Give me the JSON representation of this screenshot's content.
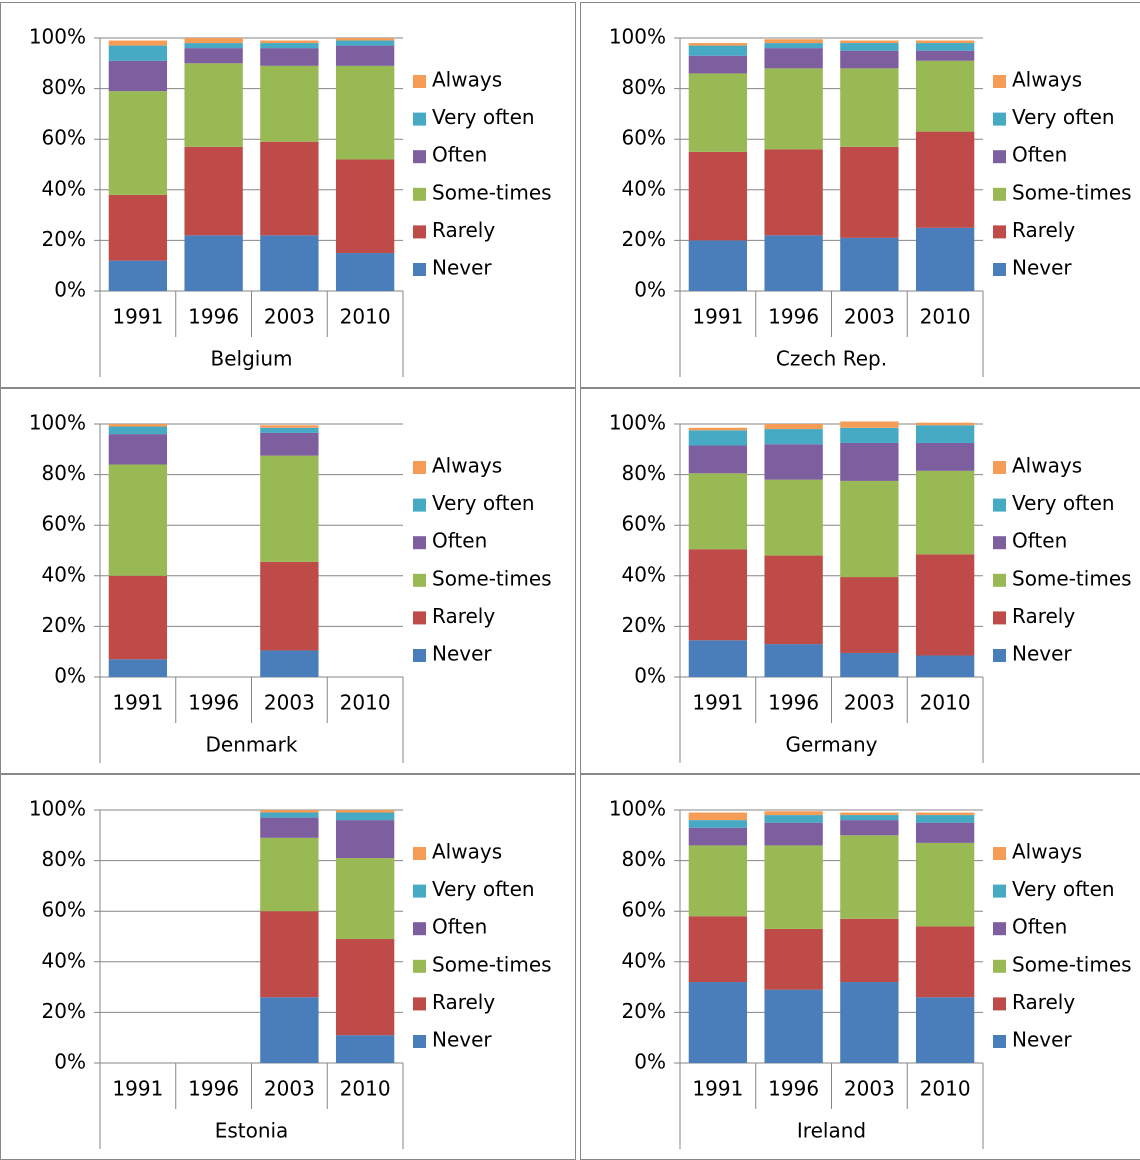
{
  "chart_data": [
    {
      "type": "bar",
      "stacked": true,
      "xlabel": "Belgium",
      "categories": [
        "1991",
        "1996",
        "2003",
        "2010"
      ],
      "ylim": [
        0,
        100
      ],
      "yticks": [
        {
          "value": 0,
          "label": "0%"
        },
        {
          "value": 20,
          "label": "20%"
        },
        {
          "value": 40,
          "label": "40%"
        },
        {
          "value": 60,
          "label": "60%"
        },
        {
          "value": 80,
          "label": "80%"
        },
        {
          "value": 100,
          "label": "100%"
        }
      ],
      "grid": true,
      "legend": "right",
      "series": [
        {
          "name": "Never",
          "color": "#4a7ebb",
          "values": [
            12,
            22,
            22,
            15
          ]
        },
        {
          "name": "Rarely",
          "color": "#be4b48",
          "values": [
            26,
            35,
            37,
            37
          ]
        },
        {
          "name": "Some-times",
          "color": "#98b954",
          "values": [
            41,
            33,
            30,
            37
          ]
        },
        {
          "name": "Often",
          "color": "#7d5fa0",
          "values": [
            12,
            6,
            7,
            8
          ]
        },
        {
          "name": "Very often",
          "color": "#46aac5",
          "values": [
            6,
            2,
            2,
            2
          ]
        },
        {
          "name": "Always",
          "color": "#f59d56",
          "values": [
            2,
            2,
            1,
            1
          ]
        }
      ]
    },
    {
      "type": "bar",
      "stacked": true,
      "xlabel": "Czech Rep.",
      "categories": [
        "1991",
        "1996",
        "2003",
        "2010"
      ],
      "ylim": [
        0,
        100
      ],
      "yticks": [
        {
          "value": 0,
          "label": "0%"
        },
        {
          "value": 20,
          "label": "20%"
        },
        {
          "value": 40,
          "label": "40%"
        },
        {
          "value": 60,
          "label": "60%"
        },
        {
          "value": 80,
          "label": "80%"
        },
        {
          "value": 100,
          "label": "100%"
        }
      ],
      "grid": true,
      "legend": "right",
      "series": [
        {
          "name": "Never",
          "color": "#4a7ebb",
          "values": [
            20,
            22,
            21,
            25
          ]
        },
        {
          "name": "Rarely",
          "color": "#be4b48",
          "values": [
            35,
            34,
            36,
            38
          ]
        },
        {
          "name": "Some-times",
          "color": "#98b954",
          "values": [
            31,
            32,
            31,
            28
          ]
        },
        {
          "name": "Often",
          "color": "#7d5fa0",
          "values": [
            7,
            8,
            7,
            4
          ]
        },
        {
          "name": "Very often",
          "color": "#46aac5",
          "values": [
            4,
            2,
            3,
            3
          ]
        },
        {
          "name": "Always",
          "color": "#f59d56",
          "values": [
            1,
            1.5,
            1,
            1
          ]
        }
      ]
    },
    {
      "type": "bar",
      "stacked": true,
      "xlabel": "Denmark",
      "categories": [
        "1991",
        "1996",
        "2003",
        "2010"
      ],
      "ylim": [
        0,
        100
      ],
      "yticks": [
        {
          "value": 0,
          "label": "0%"
        },
        {
          "value": 20,
          "label": "20%"
        },
        {
          "value": 40,
          "label": "40%"
        },
        {
          "value": 60,
          "label": "60%"
        },
        {
          "value": 80,
          "label": "80%"
        },
        {
          "value": 100,
          "label": "100%"
        }
      ],
      "grid": true,
      "legend": "right",
      "series": [
        {
          "name": "Never",
          "color": "#4a7ebb",
          "values": [
            7,
            null,
            10.5,
            null
          ]
        },
        {
          "name": "Rarely",
          "color": "#be4b48",
          "values": [
            33,
            null,
            35,
            null
          ]
        },
        {
          "name": "Some-times",
          "color": "#98b954",
          "values": [
            44,
            null,
            42,
            null
          ]
        },
        {
          "name": "Often",
          "color": "#7d5fa0",
          "values": [
            12,
            null,
            9,
            null
          ]
        },
        {
          "name": "Very often",
          "color": "#46aac5",
          "values": [
            3,
            null,
            2,
            null
          ]
        },
        {
          "name": "Always",
          "color": "#f59d56",
          "values": [
            1,
            null,
            1,
            null
          ]
        }
      ]
    },
    {
      "type": "bar",
      "stacked": true,
      "xlabel": "Germany",
      "categories": [
        "1991",
        "1996",
        "2003",
        "2010"
      ],
      "ylim": [
        0,
        100
      ],
      "yticks": [
        {
          "value": 0,
          "label": "0%"
        },
        {
          "value": 20,
          "label": "20%"
        },
        {
          "value": 40,
          "label": "40%"
        },
        {
          "value": 60,
          "label": "60%"
        },
        {
          "value": 80,
          "label": "80%"
        },
        {
          "value": 100,
          "label": "100%"
        }
      ],
      "grid": true,
      "legend": "right",
      "series": [
        {
          "name": "Never",
          "color": "#4a7ebb",
          "values": [
            14.5,
            13,
            9.5,
            8.5
          ]
        },
        {
          "name": "Rarely",
          "color": "#be4b48",
          "values": [
            36,
            35,
            30,
            40
          ]
        },
        {
          "name": "Some-times",
          "color": "#98b954",
          "values": [
            30,
            30,
            38,
            33
          ]
        },
        {
          "name": "Often",
          "color": "#7d5fa0",
          "values": [
            11,
            14,
            15,
            11
          ]
        },
        {
          "name": "Very often",
          "color": "#46aac5",
          "values": [
            6,
            6,
            6,
            7
          ]
        },
        {
          "name": "Always",
          "color": "#f59d56",
          "values": [
            1,
            2,
            2.5,
            1
          ]
        }
      ]
    },
    {
      "type": "bar",
      "stacked": true,
      "xlabel": "Estonia",
      "categories": [
        "1991",
        "1996",
        "2003",
        "2010"
      ],
      "ylim": [
        0,
        100
      ],
      "yticks": [
        {
          "value": 0,
          "label": "0%"
        },
        {
          "value": 20,
          "label": "20%"
        },
        {
          "value": 40,
          "label": "40%"
        },
        {
          "value": 60,
          "label": "60%"
        },
        {
          "value": 80,
          "label": "80%"
        },
        {
          "value": 100,
          "label": "100%"
        }
      ],
      "grid": true,
      "legend": "right",
      "series": [
        {
          "name": "Never",
          "color": "#4a7ebb",
          "values": [
            null,
            null,
            26,
            11
          ]
        },
        {
          "name": "Rarely",
          "color": "#be4b48",
          "values": [
            null,
            null,
            34,
            38
          ]
        },
        {
          "name": "Some-times",
          "color": "#98b954",
          "values": [
            null,
            null,
            29,
            32
          ]
        },
        {
          "name": "Often",
          "color": "#7d5fa0",
          "values": [
            null,
            null,
            8,
            15
          ]
        },
        {
          "name": "Very often",
          "color": "#46aac5",
          "values": [
            null,
            null,
            2,
            3
          ]
        },
        {
          "name": "Always",
          "color": "#f59d56",
          "values": [
            null,
            null,
            1,
            1
          ]
        }
      ]
    },
    {
      "type": "bar",
      "stacked": true,
      "xlabel": "Ireland",
      "categories": [
        "1991",
        "1996",
        "2003",
        "2010"
      ],
      "ylim": [
        0,
        100
      ],
      "yticks": [
        {
          "value": 0,
          "label": "0%"
        },
        {
          "value": 20,
          "label": "20%"
        },
        {
          "value": 40,
          "label": "40%"
        },
        {
          "value": 60,
          "label": "60%"
        },
        {
          "value": 80,
          "label": "80%"
        },
        {
          "value": 100,
          "label": "100%"
        }
      ],
      "grid": true,
      "legend": "right",
      "series": [
        {
          "name": "Never",
          "color": "#4a7ebb",
          "values": [
            32,
            29,
            32,
            26
          ]
        },
        {
          "name": "Rarely",
          "color": "#be4b48",
          "values": [
            26,
            24,
            25,
            28
          ]
        },
        {
          "name": "Some-times",
          "color": "#98b954",
          "values": [
            28,
            33,
            33,
            33
          ]
        },
        {
          "name": "Often",
          "color": "#7d5fa0",
          "values": [
            7,
            9,
            6,
            8
          ]
        },
        {
          "name": "Very often",
          "color": "#46aac5",
          "values": [
            3,
            3,
            2,
            3
          ]
        },
        {
          "name": "Always",
          "color": "#f59d56",
          "values": [
            3,
            1.5,
            1,
            1
          ]
        }
      ]
    }
  ]
}
